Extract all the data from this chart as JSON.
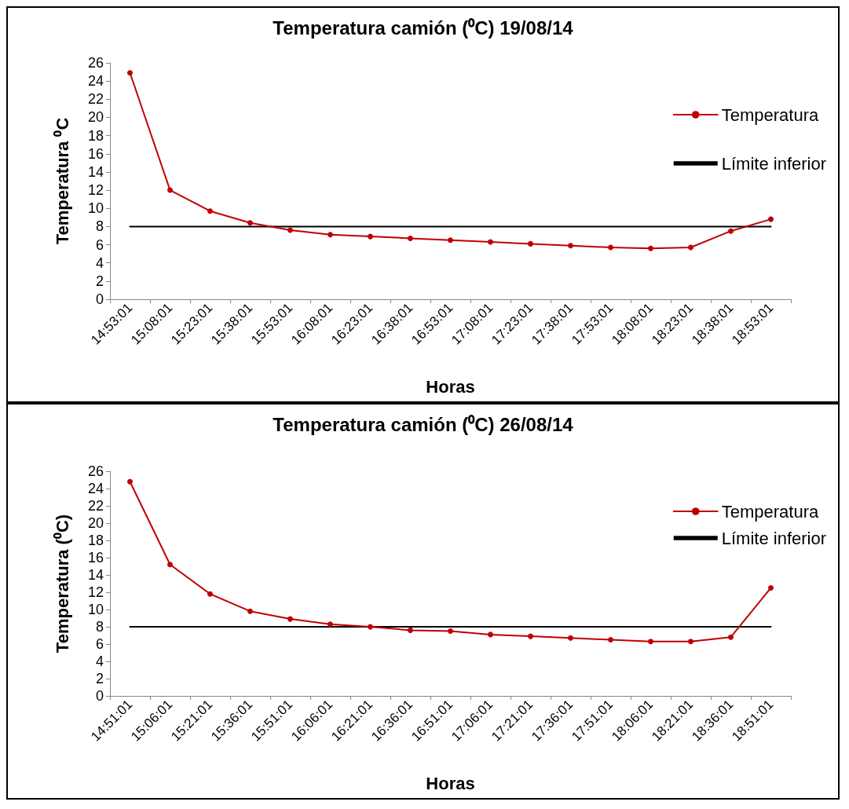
{
  "chart_data": [
    {
      "type": "line",
      "title": "Temperatura camión (⁰C) 19/08/14",
      "xlabel": "Horas",
      "ylabel": "Temperatura ⁰C",
      "categories": [
        "14:53:01",
        "15:08:01",
        "15:23:01",
        "15:38:01",
        "15:53:01",
        "16:08:01",
        "16:23:01",
        "16:38:01",
        "16:53:01",
        "17:08:01",
        "17:23:01",
        "17:38:01",
        "17:53:01",
        "18:08:01",
        "18:23:01",
        "18:38:01",
        "18:53:01"
      ],
      "series": [
        {
          "name": "Temperatura",
          "color": "#c00000",
          "marker": "circle",
          "values": [
            24.9,
            12.0,
            9.7,
            8.4,
            7.6,
            7.1,
            6.9,
            6.7,
            6.5,
            6.3,
            6.1,
            5.9,
            5.7,
            5.6,
            5.7,
            7.5,
            8.8
          ]
        },
        {
          "name": "Límite inferior",
          "color": "#000000",
          "marker": "none",
          "values": [
            8,
            8,
            8,
            8,
            8,
            8,
            8,
            8,
            8,
            8,
            8,
            8,
            8,
            8,
            8,
            8,
            8
          ]
        }
      ],
      "ylim": [
        0,
        26
      ],
      "yticks": [
        0,
        2,
        4,
        6,
        8,
        10,
        12,
        14,
        16,
        18,
        20,
        22,
        24,
        26
      ],
      "grid": false,
      "legend": "right"
    },
    {
      "type": "line",
      "title": "Temperatura camión (⁰C) 26/08/14",
      "xlabel": "Horas",
      "ylabel": "Temperatura (⁰C)",
      "categories": [
        "14:51:01",
        "15:06:01",
        "15:21:01",
        "15:36:01",
        "15:51:01",
        "16:06:01",
        "16:21:01",
        "16:36:01",
        "16:51:01",
        "17:06:01",
        "17:21:01",
        "17:36:01",
        "17:51:01",
        "18:06:01",
        "18:21:01",
        "18:36:01",
        "18:51:01"
      ],
      "series": [
        {
          "name": "Temperatura",
          "color": "#c00000",
          "marker": "circle",
          "values": [
            24.8,
            15.2,
            11.8,
            9.8,
            8.9,
            8.3,
            8.0,
            7.6,
            7.5,
            7.1,
            6.9,
            6.7,
            6.5,
            6.3,
            6.3,
            6.8,
            12.5
          ]
        },
        {
          "name": "Límite inferior",
          "color": "#000000",
          "marker": "none",
          "values": [
            8,
            8,
            8,
            8,
            8,
            8,
            8,
            8,
            8,
            8,
            8,
            8,
            8,
            8,
            8,
            8,
            8
          ]
        }
      ],
      "ylim": [
        0,
        26
      ],
      "yticks": [
        0,
        2,
        4,
        6,
        8,
        10,
        12,
        14,
        16,
        18,
        20,
        22,
        24,
        26
      ],
      "grid": false,
      "legend": "right"
    }
  ]
}
